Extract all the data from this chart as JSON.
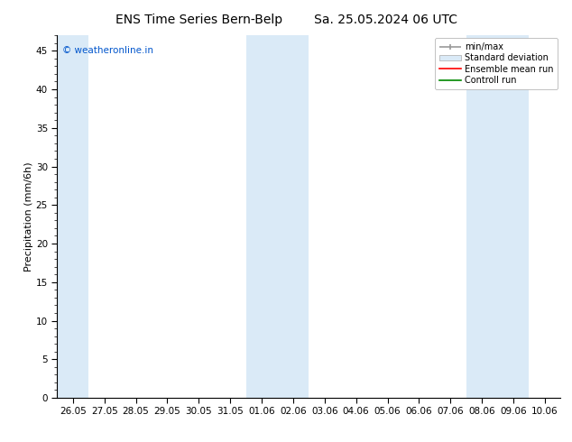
{
  "title_left": "ENS Time Series Bern-Belp",
  "title_right": "Sa. 25.05.2024 06 UTC",
  "ylabel": "Precipitation (mm/6h)",
  "ylim": [
    0,
    47
  ],
  "yticks": [
    0,
    5,
    10,
    15,
    20,
    25,
    30,
    35,
    40,
    45
  ],
  "xlabel_dates": [
    "26.05",
    "27.05",
    "28.05",
    "29.05",
    "30.05",
    "31.05",
    "01.06",
    "02.06",
    "03.06",
    "04.06",
    "05.06",
    "06.06",
    "07.06",
    "08.06",
    "09.06",
    "10.06"
  ],
  "shaded_band_indices": [
    0,
    6,
    7,
    13,
    14
  ],
  "band_color": "#daeaf7",
  "background_color": "#ffffff",
  "title_fontsize": 10,
  "axis_fontsize": 8,
  "tick_fontsize": 7.5,
  "watermark_text": "© weatheronline.in",
  "watermark_color": "#0055cc",
  "legend_labels": [
    "min/max",
    "Standard deviation",
    "Ensemble mean run",
    "Controll run"
  ],
  "minmax_color": "#999999",
  "std_color": "#daeaf7",
  "ensemble_color": "#ff0000",
  "control_color": "#008800"
}
